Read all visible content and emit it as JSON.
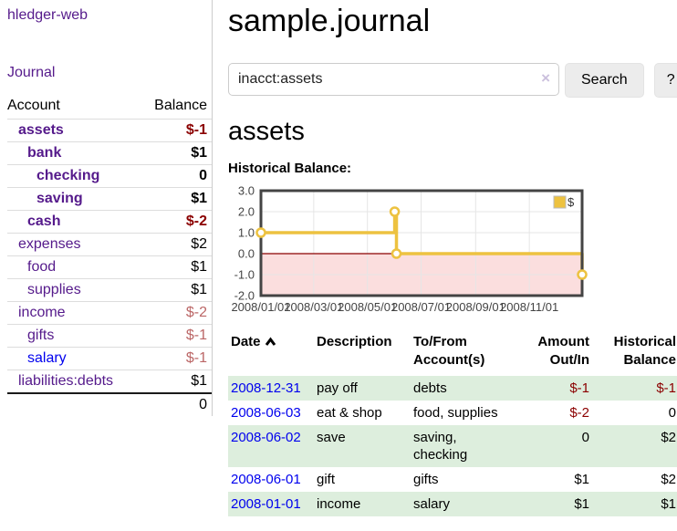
{
  "app": {
    "title": "hledger-web"
  },
  "sidebar": {
    "journal_link": "Journal",
    "table": {
      "headers": {
        "account": "Account",
        "balance": "Balance"
      },
      "rows": [
        {
          "account": "assets",
          "indent": 0,
          "bold": true,
          "balance": "$-1",
          "balance_style": "neg-strong"
        },
        {
          "account": "bank",
          "indent": 1,
          "bold": true,
          "balance": "$1",
          "balance_style": "pos-strong"
        },
        {
          "account": "checking",
          "indent": 2,
          "bold": true,
          "balance": "0",
          "balance_style": "pos-strong"
        },
        {
          "account": "saving",
          "indent": 2,
          "bold": true,
          "balance": "$1",
          "balance_style": "pos-strong"
        },
        {
          "account": "cash",
          "indent": 1,
          "bold": true,
          "balance": "$-2",
          "balance_style": "neg-strong"
        },
        {
          "account": "expenses",
          "indent": 0,
          "bold": false,
          "balance": "$2",
          "balance_style": "pos"
        },
        {
          "account": "food",
          "indent": 1,
          "bold": false,
          "balance": "$1",
          "balance_style": "pos"
        },
        {
          "account": "supplies",
          "indent": 1,
          "bold": false,
          "balance": "$1",
          "balance_style": "pos"
        },
        {
          "account": "income",
          "indent": 0,
          "bold": false,
          "balance": "$-2",
          "balance_style": "neg-soft"
        },
        {
          "account": "gifts",
          "indent": 1,
          "bold": false,
          "balance": "$-1",
          "balance_style": "neg-soft"
        },
        {
          "account": "salary",
          "indent": 1,
          "bold": false,
          "link_color": "blue",
          "balance": "$-1",
          "balance_style": "neg-soft"
        },
        {
          "account": "liabilities:debts",
          "indent": 0,
          "bold": false,
          "balance": "$1",
          "balance_style": "pos"
        }
      ],
      "total": "0"
    }
  },
  "main": {
    "title": "sample.journal",
    "search": {
      "value": "inacct:assets",
      "clear_label": "×",
      "button": "Search",
      "help_button": "?"
    },
    "account_heading": "assets",
    "chart_label": "Historical Balance:"
  },
  "chart_data": {
    "type": "line",
    "title": "Historical Balance:",
    "legend": {
      "position": "top-right",
      "items": [
        {
          "label": "$",
          "color": "#edc240"
        }
      ]
    },
    "x_min": "2008-01-01",
    "x_max": "2008-12-31",
    "ylim": [
      -2,
      3
    ],
    "grid": true,
    "y_ticks": [
      {
        "label": "3.0",
        "value": 3
      },
      {
        "label": "2.0",
        "value": 2
      },
      {
        "label": "1.0",
        "value": 1
      },
      {
        "label": "0.0",
        "value": 0
      },
      {
        "label": "-1.0",
        "value": -1
      },
      {
        "label": "-2.0",
        "value": -2
      }
    ],
    "x_ticks": [
      {
        "label": "2008/01/01",
        "date": "2008-01-01"
      },
      {
        "label": "2008/03/01",
        "date": "2008-03-01"
      },
      {
        "label": "2008/05/01",
        "date": "2008-05-01"
      },
      {
        "label": "2008/07/01",
        "date": "2008-07-01"
      },
      {
        "label": "2008/09/01",
        "date": "2008-09-01"
      },
      {
        "label": "2008/11/01",
        "date": "2008-11-01"
      }
    ],
    "series": [
      {
        "name": "$",
        "color": "#edc240",
        "style": "step",
        "points": [
          {
            "date": "2008-01-01",
            "value": 1
          },
          {
            "date": "2008-06-01",
            "value": 2
          },
          {
            "date": "2008-06-03",
            "value": 0
          },
          {
            "date": "2008-12-31",
            "value": -1
          }
        ]
      }
    ],
    "negative_region_color": "#fbdede",
    "zero_line_color": "#8b0000",
    "border_color": "#444444",
    "gridline_color": "#e6e6e6"
  },
  "register": {
    "headers": {
      "date": "Date",
      "description": "Description",
      "account": "To/From Account(s)",
      "amount": "Amount Out/In",
      "balance": "Historical Balance"
    },
    "rows": [
      {
        "date": "2008-12-31",
        "description": "pay off",
        "accounts": "debts",
        "amount": "$-1",
        "amount_neg": true,
        "balance": "$-1",
        "balance_neg": true
      },
      {
        "date": "2008-06-03",
        "description": "eat & shop",
        "accounts": "food, supplies",
        "amount": "$-2",
        "amount_neg": true,
        "balance": "0",
        "balance_neg": false
      },
      {
        "date": "2008-06-02",
        "description": "save",
        "accounts": "saving, checking",
        "amount": "0",
        "amount_neg": false,
        "balance": "$2",
        "balance_neg": false
      },
      {
        "date": "2008-06-01",
        "description": "gift",
        "accounts": "gifts",
        "amount": "$1",
        "amount_neg": false,
        "balance": "$2",
        "balance_neg": false
      },
      {
        "date": "2008-01-01",
        "description": "income",
        "accounts": "salary",
        "amount": "$1",
        "amount_neg": false,
        "balance": "$1",
        "balance_neg": false
      }
    ]
  }
}
